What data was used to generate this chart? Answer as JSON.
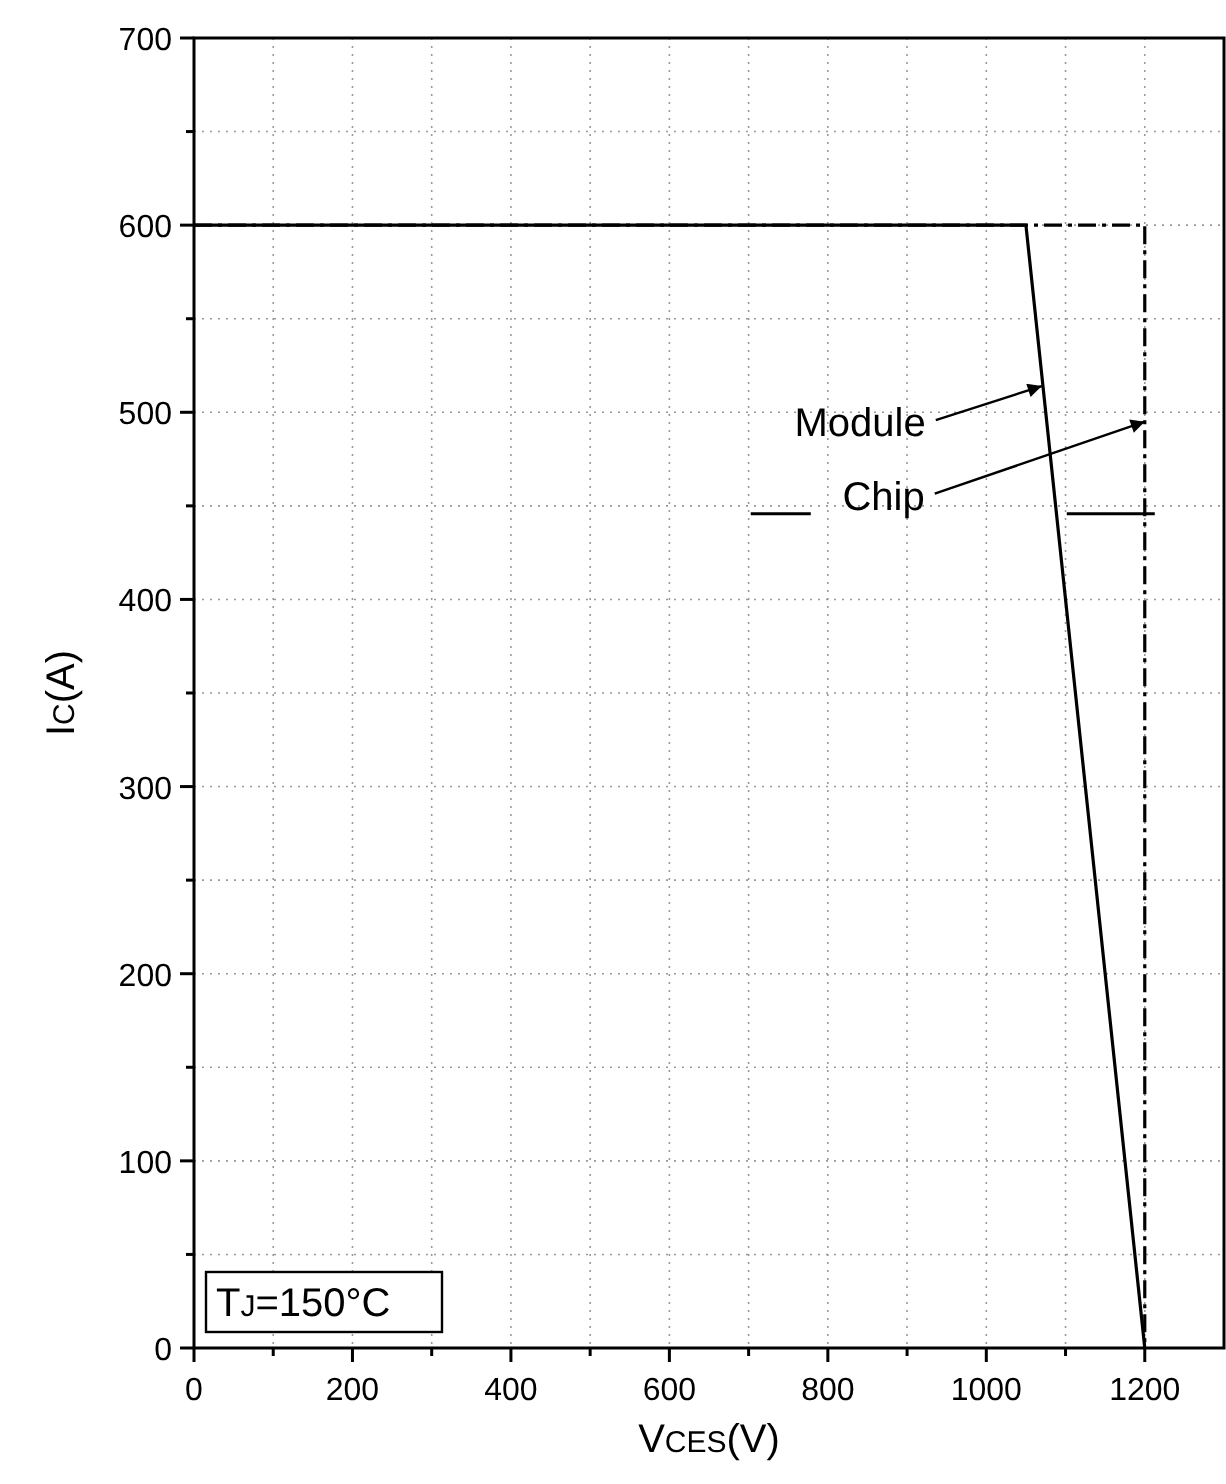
{
  "chart_data": {
    "type": "line",
    "xlabel": "V$_{CES}$(V)",
    "ylabel": "I$_{C}$(A)",
    "xlim": [
      0,
      1300
    ],
    "ylim": [
      0,
      700
    ],
    "xticks": [
      0,
      {
        "value": 100,
        "label": null
      },
      200,
      {
        "value": 300,
        "label": null
      },
      400,
      {
        "value": 500,
        "label": null
      },
      600,
      {
        "value": 700,
        "label": null
      },
      800,
      {
        "value": 900,
        "label": null
      },
      1000,
      {
        "value": 1100,
        "label": null
      },
      1200
    ],
    "yticks": [
      0,
      {
        "value": 50,
        "label": null
      },
      100,
      {
        "value": 150,
        "label": null
      },
      200,
      {
        "value": 250,
        "label": null
      },
      300,
      {
        "value": 350,
        "label": null
      },
      400,
      {
        "value": 450,
        "label": null
      },
      500,
      {
        "value": 550,
        "label": null
      },
      600,
      {
        "value": 650,
        "label": null
      },
      700
    ],
    "grid": true,
    "marker": "none",
    "series": [
      {
        "color": "#000000",
        "line_style": "solid",
        "x": [
          0,
          1050,
          1200
        ],
        "values": [
          600,
          600,
          0
        ]
      },
      {
        "color": "#000000",
        "line_style": "dashed",
        "x": [
          0,
          1200,
          1200
        ],
        "values": [
          600,
          600,
          0
        ]
      }
    ],
    "annotations": [
      {
        "text": "Module",
        "x": 1070,
        "y": 514
      },
      {
        "text": "Chip",
        "x": 1200,
        "y": 495
      },
      "T$_{J}$=150°C"
    ]
  }
}
